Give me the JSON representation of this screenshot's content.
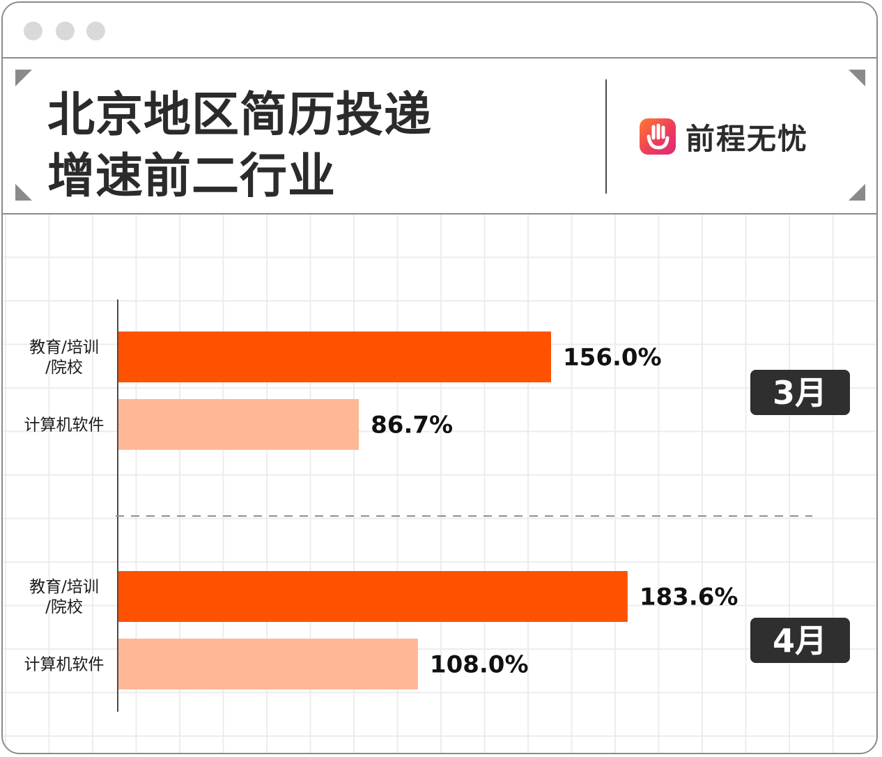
{
  "window": {
    "dots": [
      "close",
      "minimize",
      "maximize"
    ]
  },
  "header": {
    "title_line1": "北京地区简历投递",
    "title_line2": "增速前二行业",
    "logo_text": "前程无忧",
    "logo_icon": "hand-logo-icon"
  },
  "colors": {
    "primary_bar": "#ff5200",
    "secondary_bar": "#ffb896",
    "month_badge": "#2f2f2f",
    "text": "#2b2b2b"
  },
  "chart_data": {
    "type": "bar",
    "orientation": "horizontal",
    "title": "北京地区简历投递增速前二行业",
    "value_format": "percent",
    "grid": true,
    "groups": [
      {
        "name": "3月",
        "bars": [
          {
            "category": "教育/培训/院校",
            "category_lines": [
              "教育/培训",
              "/院校"
            ],
            "value": 156.0,
            "label": "156.0%"
          },
          {
            "category": "计算机软件",
            "category_lines": [
              "计算机软件"
            ],
            "value": 86.7,
            "label": "86.7%"
          }
        ]
      },
      {
        "name": "4月",
        "bars": [
          {
            "category": "教育/培训/院校",
            "category_lines": [
              "教育/培训",
              "/院校"
            ],
            "value": 183.6,
            "label": "183.6%"
          },
          {
            "category": "计算机软件",
            "category_lines": [
              "计算机软件"
            ],
            "value": 108.0,
            "label": "108.0%"
          }
        ]
      }
    ]
  }
}
